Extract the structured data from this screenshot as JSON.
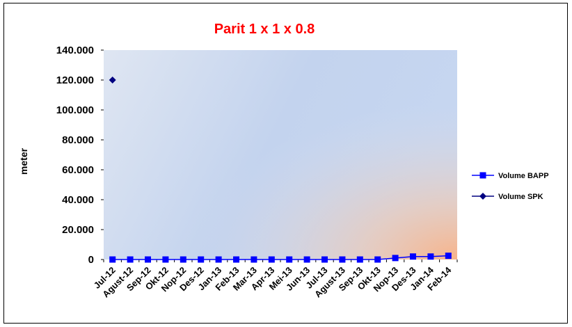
{
  "chart_data": {
    "type": "line",
    "title": "Parit 1 x 1 x 0.8",
    "ylabel": "meter",
    "xlabel": "",
    "ylim": [
      0,
      140000
    ],
    "yticks": [
      0,
      20000,
      40000,
      60000,
      80000,
      100000,
      120000,
      140000
    ],
    "ytick_labels": [
      "0",
      "20.000",
      "40.000",
      "60.000",
      "80.000",
      "100.000",
      "120.000",
      "140.000"
    ],
    "grid": false,
    "legend_position": "right",
    "categories": [
      "Jul-12",
      "Agust-12",
      "Sep-12",
      "Okt-12",
      "Nop-12",
      "Des-12",
      "Jan-13",
      "Feb-13",
      "Mar-13",
      "Apr-13",
      "Mei-13",
      "Jun-13",
      "Jul-13",
      "Agust-13",
      "Sep-13",
      "Okt-13",
      "Nop-13",
      "Des-13",
      "Jan-14",
      "Feb-14"
    ],
    "series": [
      {
        "name": "Volume BAPP",
        "marker": "square",
        "color": "#0000FF",
        "values": [
          0,
          0,
          0,
          0,
          0,
          0,
          0,
          0,
          0,
          0,
          0,
          0,
          0,
          0,
          0,
          0,
          1000,
          2000,
          2000,
          2500
        ]
      },
      {
        "name": "Volume SPK",
        "marker": "diamond",
        "color": "#000080",
        "values": [
          120000,
          null,
          null,
          null,
          null,
          null,
          null,
          null,
          null,
          null,
          null,
          null,
          null,
          null,
          null,
          null,
          null,
          null,
          null,
          null
        ]
      }
    ],
    "colors": {
      "title": "#FF0000",
      "bapp": "#0000FF",
      "spk": "#000080"
    }
  }
}
